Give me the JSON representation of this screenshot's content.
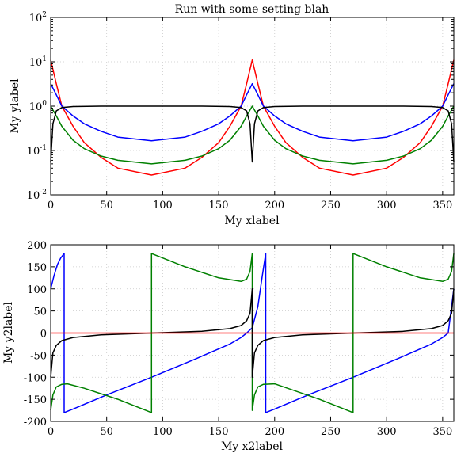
{
  "chart_data": [
    {
      "type": "line",
      "title": "Run with some setting blah",
      "xlabel": "My xlabel",
      "ylabel": "My ylabel",
      "xlim": [
        0,
        360
      ],
      "ylim": [
        0.01,
        100
      ],
      "yscale": "log",
      "grid": true,
      "xticks": [
        0,
        50,
        100,
        150,
        200,
        250,
        300,
        350
      ],
      "yticks": [
        {
          "base": "10",
          "exp": "-2",
          "value": 0.01
        },
        {
          "base": "10",
          "exp": "-1",
          "value": 0.1
        },
        {
          "base": "10",
          "exp": "0",
          "value": 1
        },
        {
          "base": "10",
          "exp": "1",
          "value": 10
        },
        {
          "base": "10",
          "exp": "2",
          "value": 100
        }
      ],
      "series": [
        {
          "color": "#ff0000",
          "x": [
            0,
            5,
            10,
            20,
            30,
            45,
            60,
            90,
            120,
            135,
            150,
            160,
            170,
            175,
            180,
            185,
            190,
            200,
            210,
            225,
            240,
            270,
            300,
            315,
            330,
            340,
            350,
            355,
            360
          ],
          "y": [
            11,
            3.2,
            1.0,
            0.35,
            0.15,
            0.07,
            0.04,
            0.028,
            0.04,
            0.07,
            0.15,
            0.35,
            1.0,
            3.2,
            11,
            3.2,
            1.0,
            0.35,
            0.15,
            0.07,
            0.04,
            0.028,
            0.04,
            0.07,
            0.15,
            0.35,
            1.0,
            3.2,
            11
          ]
        },
        {
          "color": "#0000ff",
          "x": [
            0,
            5,
            10,
            20,
            30,
            45,
            60,
            90,
            120,
            135,
            150,
            160,
            170,
            175,
            180,
            185,
            190,
            200,
            210,
            225,
            240,
            270,
            300,
            315,
            330,
            340,
            350,
            355,
            360
          ],
          "y": [
            3.2,
            1.8,
            1.0,
            0.6,
            0.4,
            0.27,
            0.2,
            0.165,
            0.2,
            0.27,
            0.4,
            0.6,
            1.0,
            1.8,
            3.2,
            1.8,
            1.0,
            0.6,
            0.4,
            0.27,
            0.2,
            0.165,
            0.2,
            0.27,
            0.4,
            0.6,
            1.0,
            1.8,
            3.2
          ]
        },
        {
          "color": "#008000",
          "x": [
            0,
            5,
            10,
            20,
            30,
            45,
            60,
            90,
            120,
            135,
            150,
            160,
            170,
            175,
            180,
            185,
            190,
            200,
            210,
            225,
            240,
            270,
            300,
            315,
            330,
            340,
            350,
            355,
            360
          ],
          "y": [
            1.0,
            0.6,
            0.35,
            0.17,
            0.11,
            0.075,
            0.06,
            0.05,
            0.06,
            0.075,
            0.11,
            0.17,
            0.35,
            0.6,
            1.0,
            0.6,
            0.35,
            0.17,
            0.11,
            0.075,
            0.06,
            0.05,
            0.06,
            0.075,
            0.11,
            0.17,
            0.35,
            0.6,
            1.0
          ]
        },
        {
          "color": "#000000",
          "x": [
            0,
            2,
            5,
            10,
            20,
            45,
            90,
            135,
            160,
            170,
            175,
            178,
            180,
            182,
            185,
            190,
            200,
            225,
            270,
            315,
            340,
            350,
            355,
            358,
            360
          ],
          "y": [
            0.055,
            0.4,
            0.78,
            0.93,
            0.98,
            1.0,
            1.0,
            1.0,
            0.98,
            0.93,
            0.78,
            0.4,
            0.055,
            0.4,
            0.78,
            0.93,
            0.98,
            1.0,
            1.0,
            1.0,
            0.98,
            0.93,
            0.78,
            0.4,
            0.055
          ]
        }
      ]
    },
    {
      "type": "line",
      "title": "",
      "xlabel": "My x2label",
      "ylabel": "My y2label",
      "xlim": [
        0,
        360
      ],
      "ylim": [
        -200,
        200
      ],
      "grid": true,
      "xticks": [
        0,
        50,
        100,
        150,
        200,
        250,
        300,
        350
      ],
      "yticks": [
        -200,
        -150,
        -100,
        -50,
        0,
        50,
        100,
        150,
        200
      ],
      "series": [
        {
          "color": "#0000ff",
          "x": [
            0,
            3,
            6,
            9,
            12,
            12,
            20,
            50,
            90,
            130,
            160,
            170,
            175,
            180,
            185,
            189,
            192,
            192,
            200,
            230,
            270,
            310,
            340,
            350,
            355,
            360
          ],
          "y": [
            100,
            130,
            155,
            170,
            180,
            -180,
            -172,
            -140,
            -100,
            -58,
            -25,
            -10,
            0,
            12,
            60,
            130,
            180,
            -180,
            -172,
            -140,
            -100,
            -58,
            -25,
            -10,
            0,
            100
          ]
        },
        {
          "color": "#008000",
          "x": [
            0,
            2,
            5,
            10,
            15,
            30,
            60,
            90,
            90,
            120,
            150,
            170,
            175,
            178,
            180,
            180,
            182,
            185,
            190,
            200,
            240,
            270,
            270,
            300,
            330,
            350,
            355,
            358,
            360
          ],
          "y": [
            -175,
            -140,
            -122,
            -116,
            -115,
            -125,
            -150,
            -180,
            180,
            150,
            125,
            117,
            122,
            140,
            180,
            -175,
            -140,
            -122,
            -116,
            -115,
            -150,
            -180,
            180,
            150,
            125,
            117,
            122,
            140,
            180
          ]
        },
        {
          "color": "#000000",
          "x": [
            0,
            2,
            5,
            10,
            20,
            45,
            90,
            135,
            160,
            170,
            175,
            178,
            180,
            180,
            182,
            185,
            190,
            200,
            225,
            270,
            315,
            340,
            350,
            355,
            358,
            360
          ],
          "y": [
            -100,
            -45,
            -28,
            -17,
            -10,
            -4,
            0,
            4,
            10,
            17,
            28,
            45,
            100,
            -100,
            -45,
            -28,
            -17,
            -10,
            -4,
            0,
            4,
            10,
            17,
            28,
            45,
            100
          ]
        },
        {
          "color": "#ff0000",
          "x": [
            0,
            360
          ],
          "y": [
            0,
            0
          ]
        }
      ]
    }
  ]
}
